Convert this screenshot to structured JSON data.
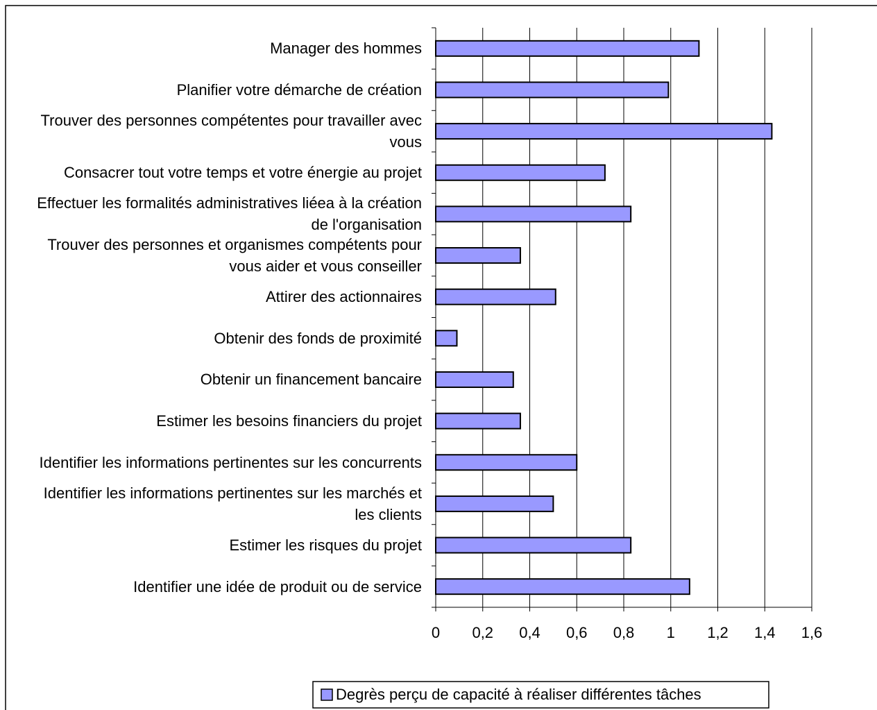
{
  "chart_data": {
    "type": "bar",
    "orientation": "horizontal",
    "categories": [
      "Manager des hommes",
      "Planifier votre démarche de création",
      "Trouver des personnes compétentes pour travailler avec vous",
      "Consacrer tout votre temps et votre énergie au projet",
      "Effectuer les formalités administratives liéea à la création de l'organisation",
      "Trouver des personnes et organismes compétents pour vous aider et vous conseiller",
      "Attirer des actionnaires",
      "Obtenir des fonds de proximité",
      "Obtenir un financement bancaire",
      "Estimer les besoins financiers du projet",
      "Identifier les informations pertinentes sur les concurrents",
      "Identifier les informations pertinentes sur les marchés et les clients",
      "Estimer les risques du projet",
      "Identifier une idée de produit ou de service"
    ],
    "series": [
      {
        "name": "Degrès perçu de capacité à réaliser différentes tâches",
        "color": "#9999ff",
        "values": [
          1.12,
          0.99,
          1.43,
          0.72,
          0.83,
          0.36,
          0.51,
          0.09,
          0.33,
          0.36,
          0.6,
          0.5,
          0.83,
          1.08
        ]
      }
    ],
    "xlim": [
      0,
      1.6
    ],
    "xticks": [
      0,
      {
        "value": 0.2,
        "label": "0,2"
      },
      {
        "value": 0.4,
        "label": "0,4"
      },
      {
        "value": 0.6,
        "label": "0,6"
      },
      {
        "value": 0.8,
        "label": "0,8"
      },
      1,
      {
        "value": 1.2,
        "label": "1,2"
      },
      {
        "value": 1.4,
        "label": "1,4"
      },
      {
        "value": 1.6,
        "label": "1,6"
      }
    ],
    "grid": true,
    "legend": "bottom"
  }
}
